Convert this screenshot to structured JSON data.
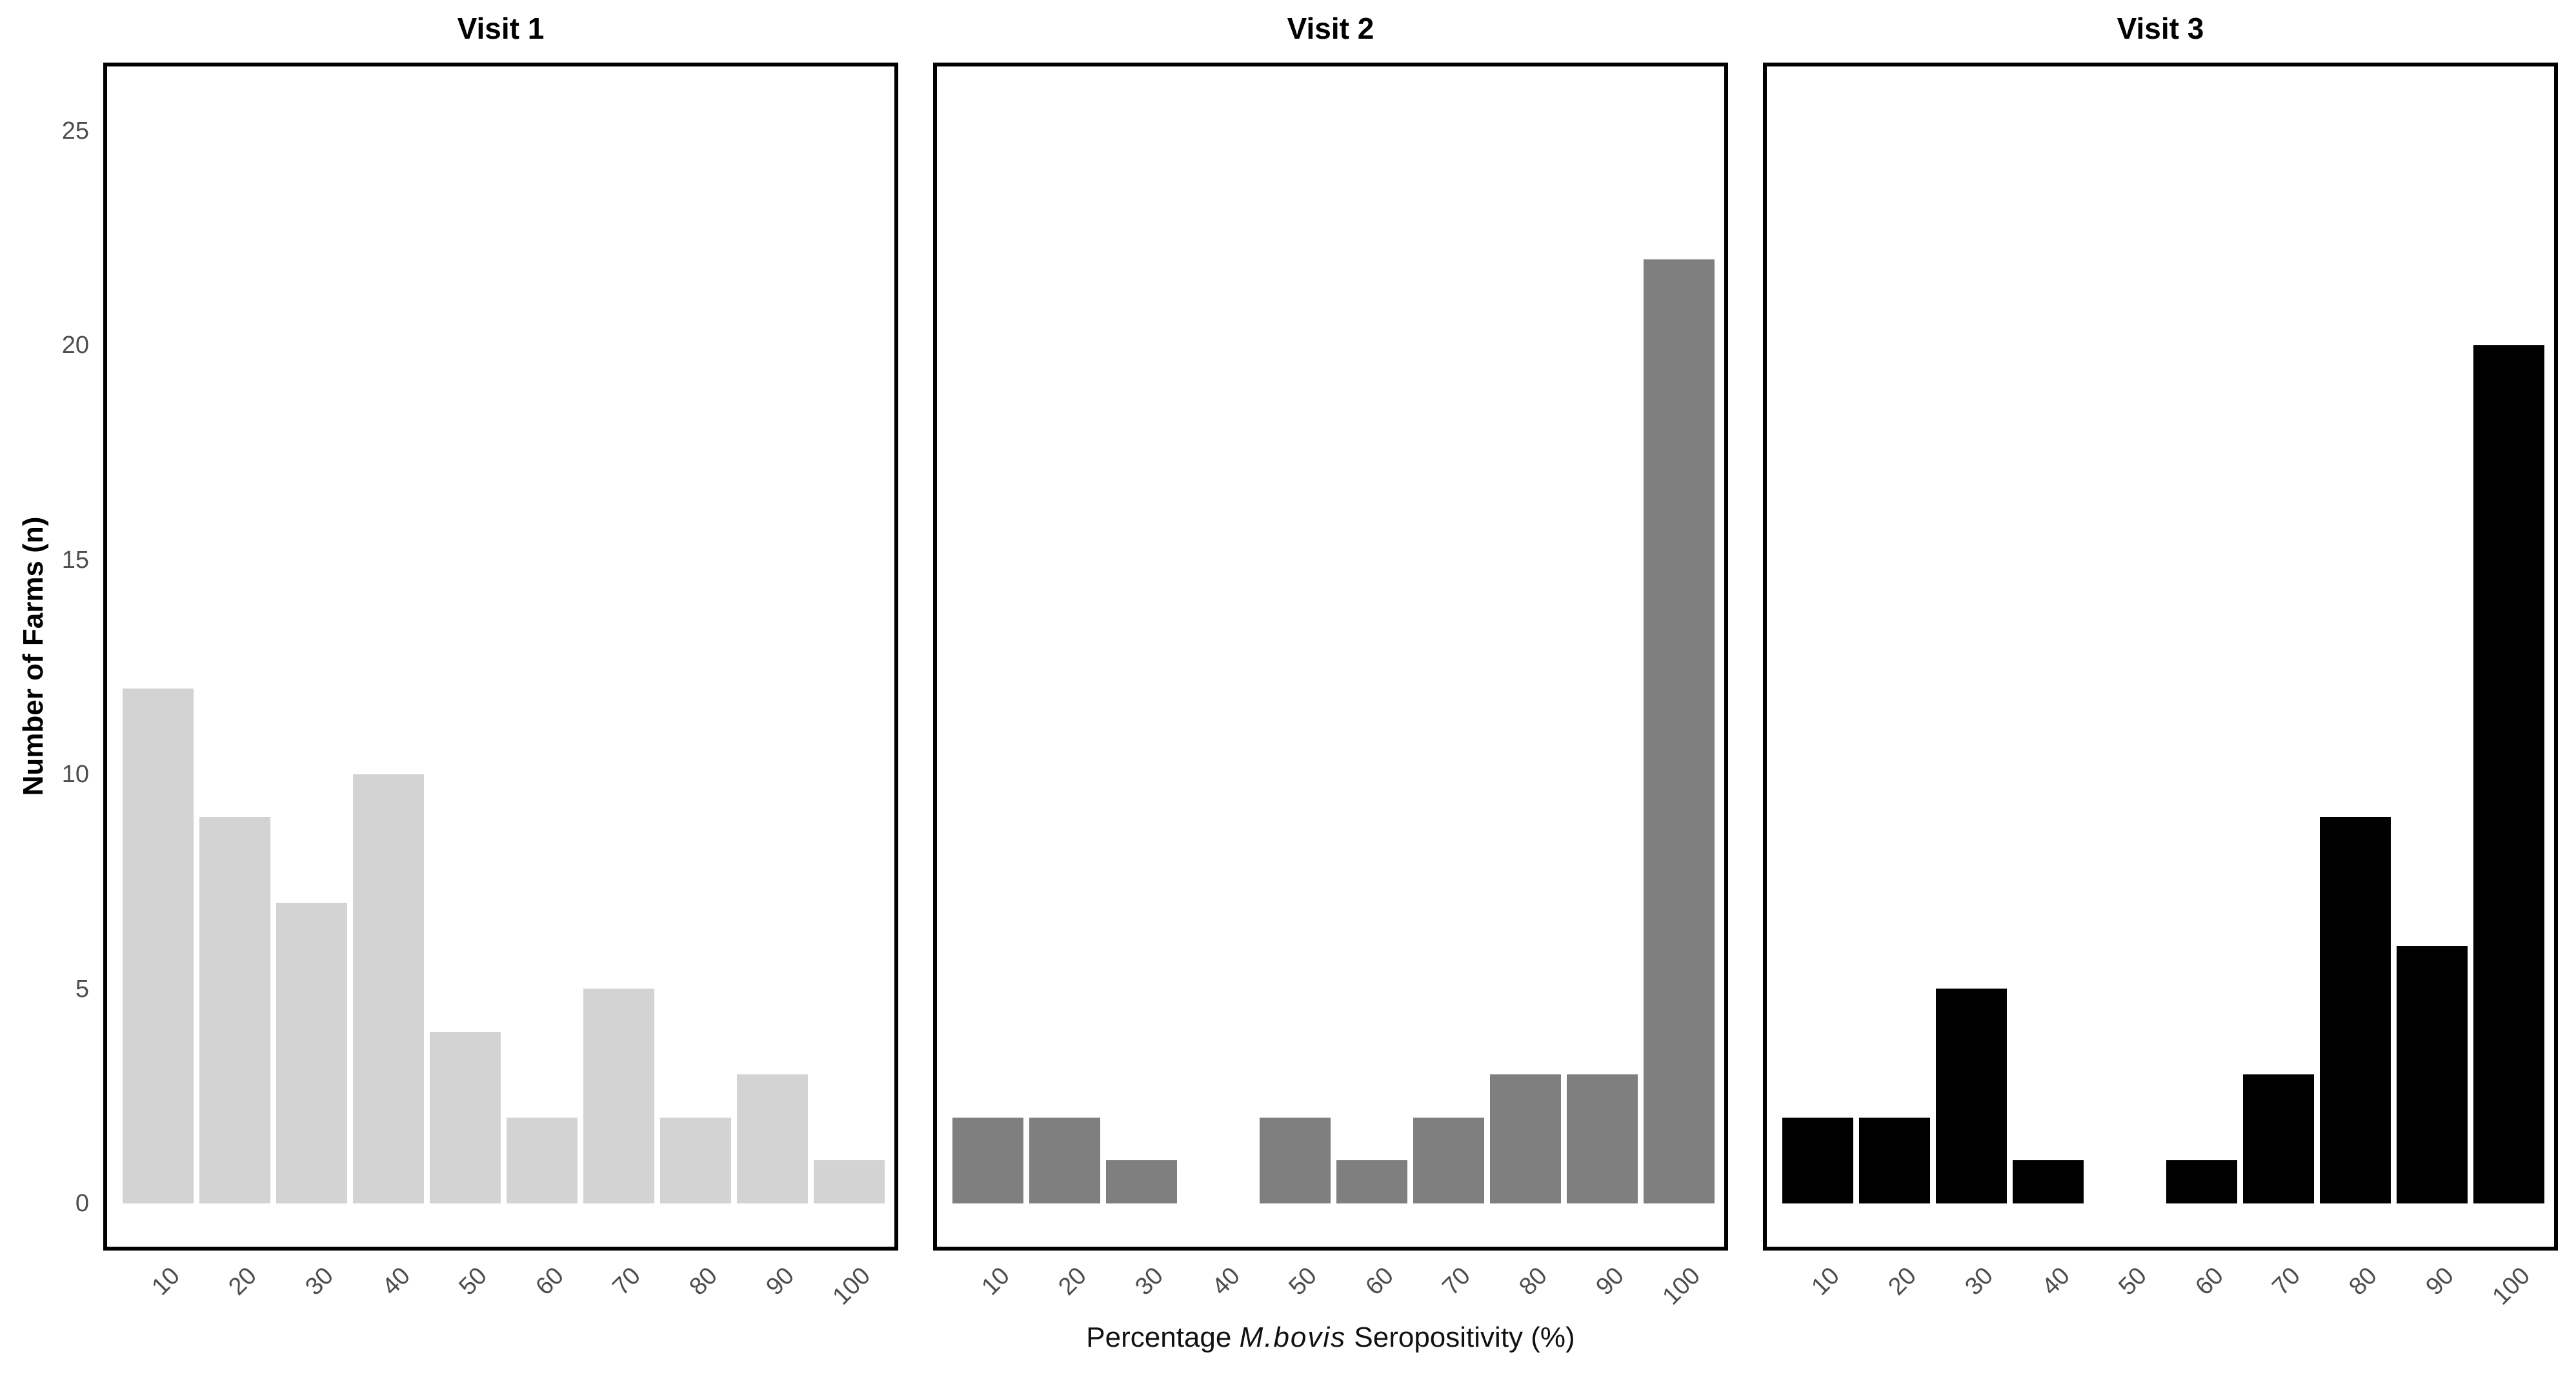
{
  "figure": {
    "background": "#ffffff",
    "panel_border_color": "#000000",
    "tick_text_color": "#4d4d4d",
    "title_text_color": "#000000"
  },
  "y_axis": {
    "title": "Number of Farms (n)",
    "ticks": [
      0,
      5,
      10,
      15,
      20,
      25
    ],
    "tick_labels": [
      "0",
      "5",
      "10",
      "15",
      "20",
      "25"
    ]
  },
  "x_axis": {
    "title_prefix": "Percentage ",
    "title_italic": "M.bovis",
    "title_suffix": " Seropositivity (%)",
    "tick_labels": [
      "10",
      "20",
      "30",
      "40",
      "50",
      "60",
      "70",
      "80",
      "90",
      "100"
    ]
  },
  "chart_data": {
    "type": "bar",
    "subtype": "faceted-histogram",
    "categories": [
      10,
      20,
      30,
      40,
      50,
      60,
      70,
      80,
      90,
      100
    ],
    "xlabel": "Percentage M.bovis Seropositivity (%)",
    "ylabel": "Number of Farms (n)",
    "ylim": [
      0,
      26
    ],
    "yticks": [
      0,
      5,
      10,
      15,
      20,
      25
    ],
    "grid": "off",
    "legend": "none",
    "panels": [
      {
        "label": "Visit 1",
        "color": "#d3d3d3",
        "values": [
          12,
          9,
          7,
          10,
          4,
          2,
          5,
          2,
          3,
          1
        ]
      },
      {
        "label": "Visit 2",
        "color": "#7f7f7f",
        "values": [
          2,
          2,
          1,
          0,
          2,
          1,
          2,
          3,
          3,
          22
        ]
      },
      {
        "label": "Visit 3",
        "color": "#000000",
        "values": [
          2,
          2,
          5,
          1,
          0,
          1,
          3,
          9,
          6,
          20
        ]
      }
    ]
  }
}
